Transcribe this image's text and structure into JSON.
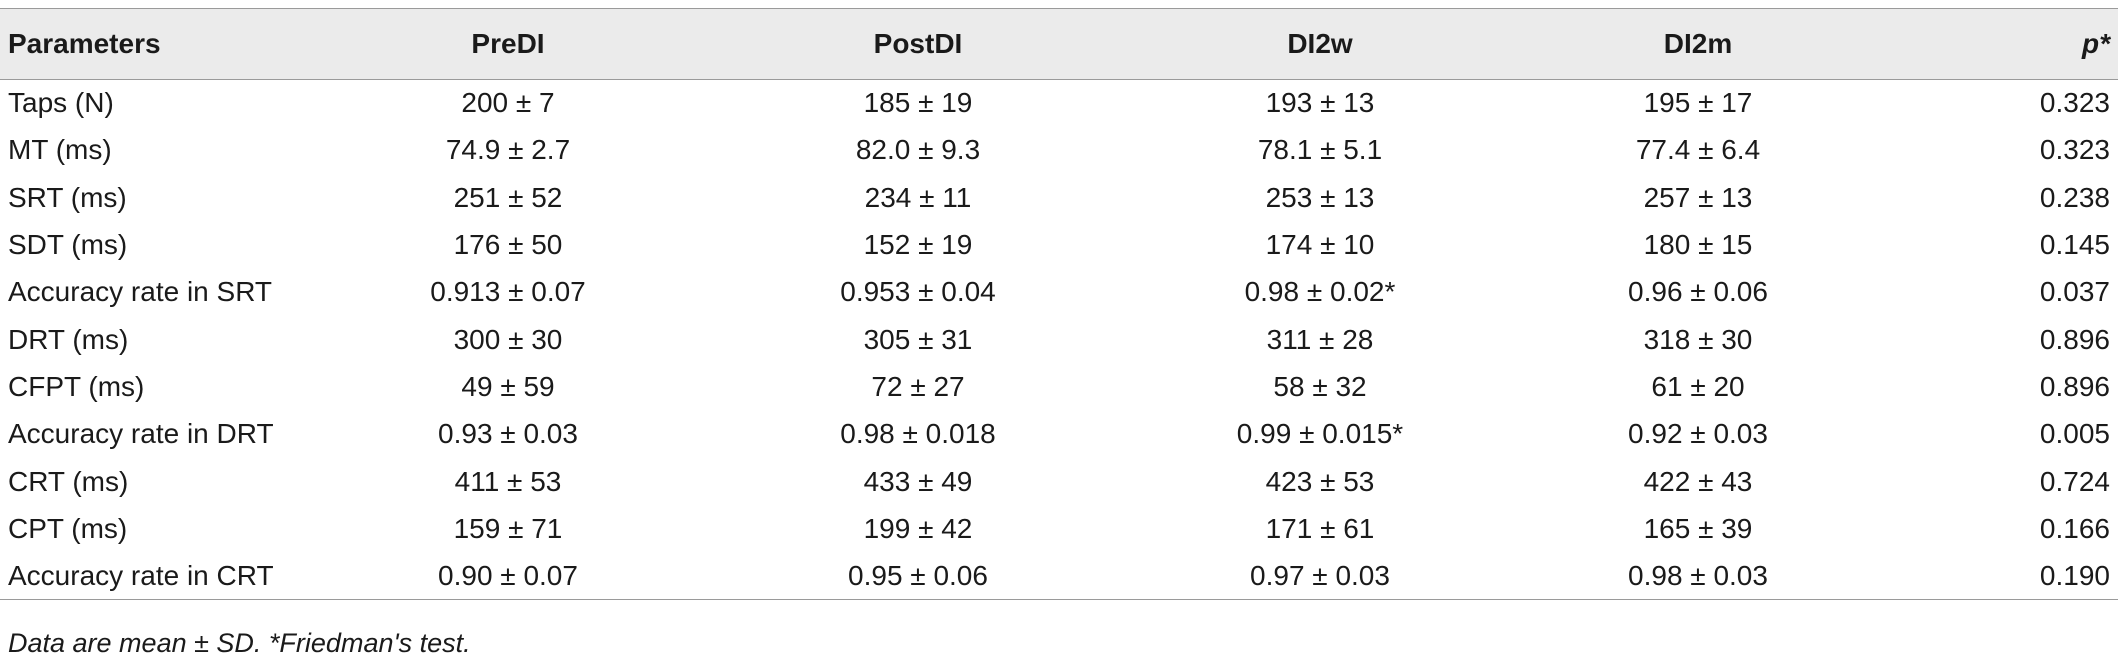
{
  "table": {
    "headers": [
      "Parameters",
      "PreDI",
      "PostDI",
      "DI2w",
      "DI2m",
      "p*"
    ],
    "rows": [
      [
        "Taps (N)",
        "200 ± 7",
        "185 ± 19",
        "193 ± 13",
        "195 ± 17",
        "0.323"
      ],
      [
        "MT (ms)",
        "74.9 ± 2.7",
        "82.0 ± 9.3",
        "78.1 ± 5.1",
        "77.4 ± 6.4",
        "0.323"
      ],
      [
        "SRT (ms)",
        "251 ± 52",
        "234 ± 11",
        "253 ± 13",
        "257 ± 13",
        "0.238"
      ],
      [
        "SDT (ms)",
        "176 ± 50",
        "152 ± 19",
        "174 ± 10",
        "180 ± 15",
        "0.145"
      ],
      [
        "Accuracy rate in SRT",
        "0.913 ± 0.07",
        "0.953 ± 0.04",
        "0.98 ± 0.02*",
        "0.96 ± 0.06",
        "0.037"
      ],
      [
        "DRT (ms)",
        "300 ± 30",
        "305 ± 31",
        "311 ± 28",
        "318 ± 30",
        "0.896"
      ],
      [
        "CFPT (ms)",
        "49 ± 59",
        "72 ± 27",
        "58 ± 32",
        "61 ± 20",
        "0.896"
      ],
      [
        "Accuracy rate in DRT",
        "0.93 ± 0.03",
        "0.98 ± 0.018",
        "0.99 ± 0.015*",
        "0.92 ± 0.03",
        "0.005"
      ],
      [
        "CRT (ms)",
        "411 ± 53",
        "433 ± 49",
        "423 ± 53",
        "422 ± 43",
        "0.724"
      ],
      [
        "CPT (ms)",
        "159 ± 71",
        "199 ± 42",
        "171 ± 61",
        "165 ± 39",
        "0.166"
      ],
      [
        "Accuracy rate in CRT",
        "0.90 ± 0.07",
        "0.95 ± 0.06",
        "0.97 ± 0.03",
        "0.98 ± 0.03",
        "0.190"
      ]
    ]
  },
  "footnote": "Data are mean ± SD. *Friedman's test."
}
